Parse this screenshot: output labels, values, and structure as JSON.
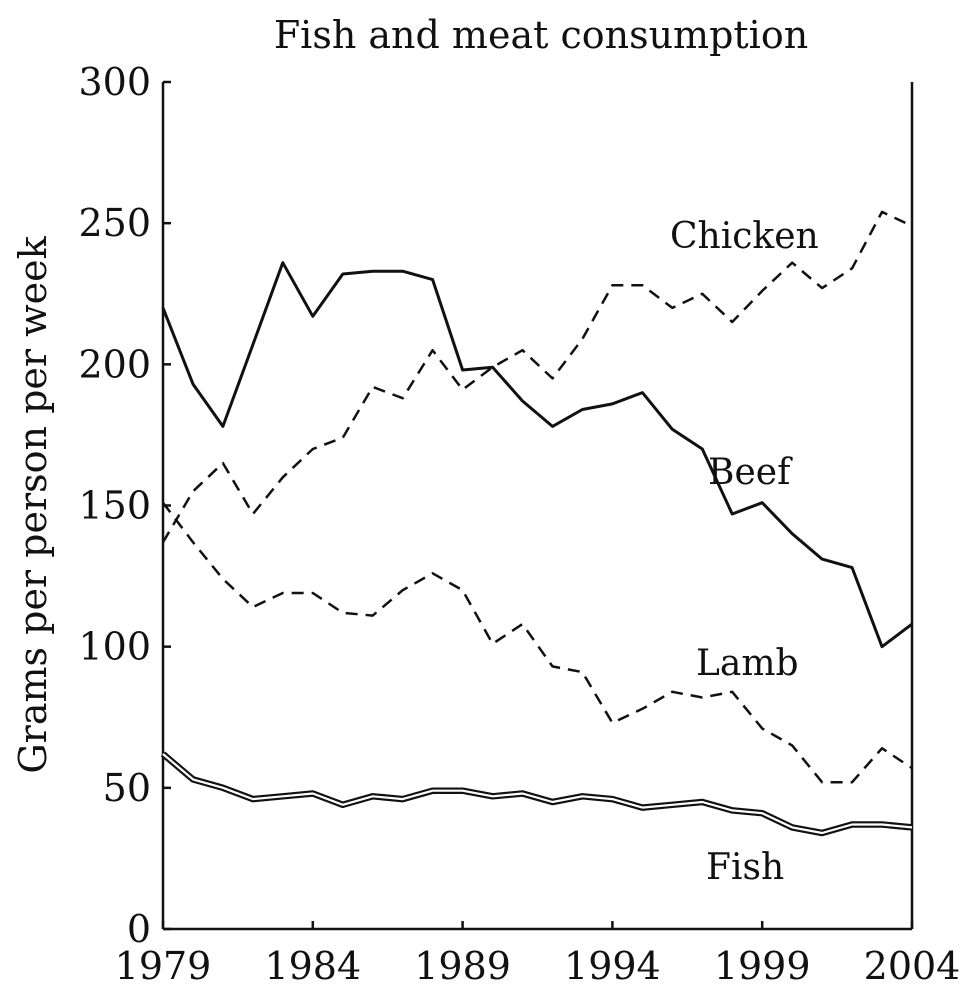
{
  "chart_data": {
    "type": "line",
    "title": "Fish and meat consumption",
    "xlabel": "",
    "ylabel": "Grams per person per week",
    "xlim": [
      1979,
      2004
    ],
    "ylim": [
      0,
      300
    ],
    "xticks": [
      1979,
      1984,
      1989,
      1994,
      1999,
      2004
    ],
    "xtick_labels": [
      "1979",
      "1984",
      "1989",
      "1994",
      "1999",
      "2004"
    ],
    "yticks": [
      0,
      50,
      100,
      150,
      200,
      250,
      300
    ],
    "ytick_labels": [
      "0",
      "50",
      "100",
      "150",
      "200",
      "250",
      "300"
    ],
    "grid": false,
    "x": [
      1979,
      1980,
      1981,
      1982,
      1983,
      1984,
      1985,
      1986,
      1987,
      1988,
      1989,
      1990,
      1991,
      1992,
      1993,
      1994,
      1995,
      1996,
      1997,
      1998,
      1999,
      2000,
      2001,
      2002,
      2003,
      2004
    ],
    "series": [
      {
        "name": "Beef",
        "style": "solid",
        "values": [
          220,
          193,
          178,
          207,
          236,
          217,
          232,
          233,
          233,
          230,
          198,
          199,
          187,
          178,
          184,
          186,
          190,
          177,
          170,
          147,
          151,
          140,
          131,
          128,
          100,
          108
        ]
      },
      {
        "name": "Chicken",
        "style": "dashed",
        "values": [
          137,
          155,
          165,
          147,
          160,
          170,
          174,
          192,
          188,
          205,
          191,
          199,
          205,
          195,
          209,
          228,
          228,
          220,
          225,
          215,
          226,
          236,
          227,
          234,
          254,
          249
        ]
      },
      {
        "name": "Lamb",
        "style": "dashed",
        "values": [
          151,
          137,
          124,
          114,
          119,
          119,
          112,
          111,
          120,
          126,
          120,
          101,
          108,
          93,
          91,
          73,
          78,
          84,
          82,
          84,
          71,
          65,
          52,
          52,
          64,
          57
        ]
      },
      {
        "name": "Fish",
        "style": "double",
        "values": [
          62,
          53,
          50,
          46,
          47,
          48,
          44,
          47,
          46,
          49,
          49,
          47,
          48,
          45,
          47,
          46,
          43,
          44,
          45,
          42,
          41,
          36,
          34,
          37,
          37,
          36
        ]
      }
    ],
    "series_labels": [
      "Chicken",
      "Beef",
      "Lamb",
      "Fish"
    ]
  }
}
